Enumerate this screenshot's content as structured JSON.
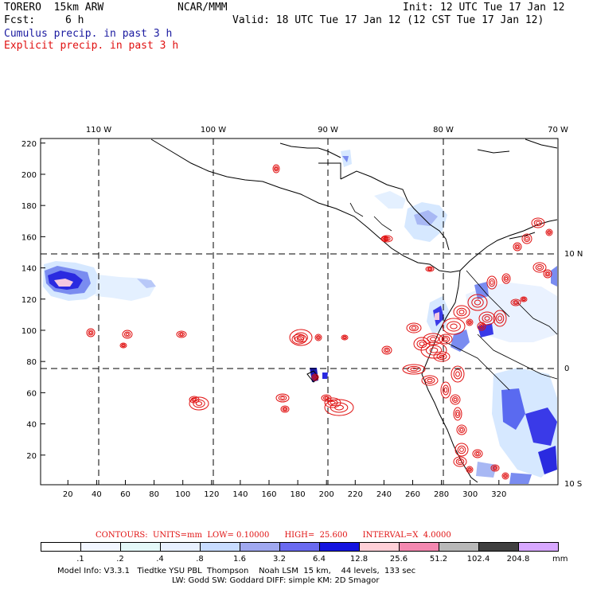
{
  "header": {
    "model": "TORERO  15km ARW",
    "org": "NCAR/MMM",
    "init": "Init: 12 UTC Tue 17 Jan 12",
    "fcst_label": "Fcst:",
    "fcst_value": "6 h",
    "valid": "Valid: 18 UTC Tue 17 Jan 12 (12 CST Tue 17 Jan 12)",
    "field1": "Cumulus precip. in past 3 h",
    "field2": "Explicit precip. in past 3 h"
  },
  "map": {
    "lon_labels": [
      "110 W",
      "100 W",
      "90 W",
      "80 W",
      "70 W"
    ],
    "lat_labels": [
      "10 N",
      "0",
      "10 S"
    ],
    "x_ticks": [
      "20",
      "40",
      "60",
      "80",
      "100",
      "120",
      "140",
      "160",
      "180",
      "200",
      "220",
      "240",
      "260",
      "280",
      "300",
      "320"
    ],
    "y_ticks": [
      "20",
      "40",
      "60",
      "80",
      "100",
      "120",
      "140",
      "160",
      "180",
      "200",
      "220"
    ],
    "colors": {
      "frame": "#000000",
      "coast": "#000000",
      "grid": "#000000",
      "explicit_contour": "#e01010",
      "cumulus_light": "#d6e8ff",
      "cumulus_mid": "#7a8cf0",
      "cumulus_dark": "#2a2ae0"
    }
  },
  "contour_info": {
    "label": "CONTOURS:  UNITS=mm  LOW= 0.10000      HIGH=  25.600      INTERVAL=X  4.0000"
  },
  "colorbar": {
    "labels": [
      ".1",
      ".2",
      ".4",
      ".8",
      "1.6",
      "3.2",
      "6.4",
      "12.8",
      "25.6",
      "51.2",
      "102.4",
      "204.8"
    ],
    "unit": "mm",
    "colors": [
      "#ffffff",
      "#f2f6ff",
      "#e4f8f8",
      "#e8f0ff",
      "#c8dcff",
      "#a0a8f0",
      "#6a6af0",
      "#1414e0",
      "#ffd0d8",
      "#f488b0",
      "#b8b8b8",
      "#404040",
      "#d8a8ff"
    ]
  },
  "footer": {
    "line1": "Model Info: V3.3.1   Tiedtke YSU PBL  Thompson    Noah LSM  15 km,    44 levels,  133 sec",
    "line2": "LW: Godd SW: Goddard DIFF: simple KM: 2D Smagor"
  }
}
